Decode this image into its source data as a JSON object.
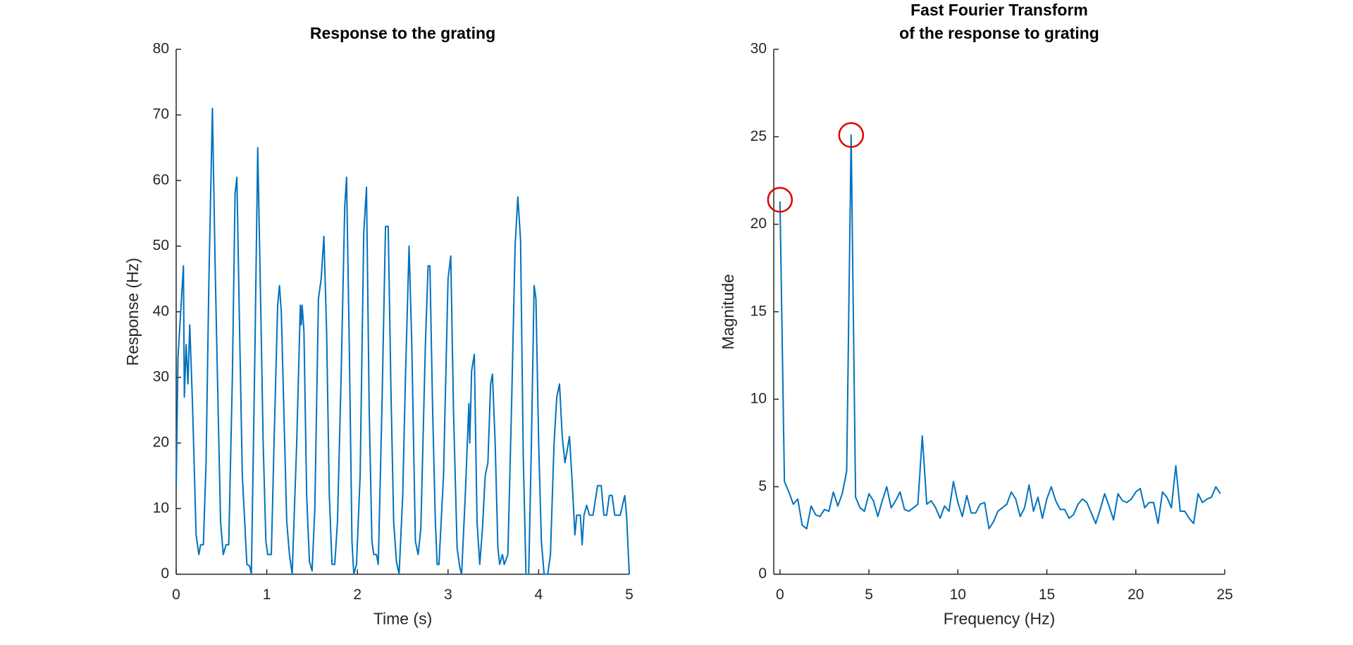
{
  "chart_data": [
    {
      "type": "line",
      "title": [
        "Response to the grating"
      ],
      "xlabel": "Time (s)",
      "ylabel": "Response (Hz)",
      "x": [
        0,
        0.02,
        0.05,
        0.08,
        0.09,
        0.11,
        0.13,
        0.15,
        0.18,
        0.22,
        0.25,
        0.27,
        0.3,
        0.33,
        0.36,
        0.4,
        0.43,
        0.46,
        0.49,
        0.52,
        0.55,
        0.58,
        0.62,
        0.65,
        0.67,
        0.7,
        0.73,
        0.76,
        0.78,
        0.81,
        0.83,
        0.87,
        0.9,
        0.93,
        0.96,
        0.99,
        1.01,
        1.05,
        1.08,
        1.12,
        1.14,
        1.16,
        1.19,
        1.22,
        1.25,
        1.28,
        1.33,
        1.37,
        1.38,
        1.39,
        1.41,
        1.44,
        1.47,
        1.5,
        1.53,
        1.57,
        1.6,
        1.63,
        1.66,
        1.69,
        1.72,
        1.75,
        1.78,
        1.82,
        1.86,
        1.88,
        1.91,
        1.94,
        1.96,
        1.99,
        2.03,
        2.07,
        2.1,
        2.13,
        2.16,
        2.18,
        2.21,
        2.23,
        2.27,
        2.31,
        2.34,
        2.37,
        2.4,
        2.43,
        2.46,
        2.5,
        2.53,
        2.57,
        2.6,
        2.64,
        2.67,
        2.7,
        2.75,
        2.78,
        2.8,
        2.83,
        2.86,
        2.88,
        2.9,
        2.95,
        3.0,
        3.03,
        3.06,
        3.1,
        3.13,
        3.15,
        3.19,
        3.23,
        3.24,
        3.26,
        3.29,
        3.32,
        3.35,
        3.38,
        3.41,
        3.44,
        3.47,
        3.49,
        3.52,
        3.55,
        3.57,
        3.6,
        3.62,
        3.66,
        3.7,
        3.74,
        3.77,
        3.8,
        3.83,
        3.86,
        3.89,
        3.92,
        3.95,
        3.97,
        4.0,
        4.03,
        4.06,
        4.1,
        4.13,
        4.17,
        4.2,
        4.23,
        4.26,
        4.29,
        4.31,
        4.34,
        4.37,
        4.4,
        4.42,
        4.46,
        4.48,
        4.5,
        4.53,
        4.56,
        4.6,
        4.65,
        4.69,
        4.72,
        4.75,
        4.78,
        4.81,
        4.84,
        4.87,
        4.9,
        4.95,
        4.97,
        5.0
      ],
      "series": [
        {
          "color": "#0072bd",
          "values": [
            13.5,
            33,
            40,
            47,
            27,
            35,
            29,
            38,
            26,
            6,
            3,
            4.5,
            4.5,
            17,
            44,
            71,
            47,
            27,
            8,
            3,
            4.5,
            4.5,
            30,
            58,
            60.5,
            37,
            15,
            7,
            1.5,
            1.3,
            0,
            35,
            65,
            43,
            20,
            5,
            3,
            3,
            20,
            41,
            44,
            40,
            24,
            8,
            3,
            0,
            20,
            41,
            38,
            41,
            37,
            12,
            2,
            0.5,
            10,
            42,
            45,
            51.5,
            37,
            12,
            1.5,
            1.5,
            8,
            30,
            56,
            60.5,
            35,
            5,
            0,
            1.5,
            15,
            52,
            59,
            25,
            5,
            3,
            3,
            1.5,
            25,
            53,
            53,
            28,
            8,
            2,
            0,
            12,
            30,
            50,
            35,
            5,
            3,
            7,
            35,
            47,
            47,
            25,
            8,
            1.5,
            1.5,
            15,
            45,
            48.5,
            25,
            4,
            1,
            0,
            12,
            26,
            20,
            31,
            33.5,
            8,
            1.5,
            7,
            15,
            17,
            29,
            30.5,
            20,
            4,
            1.5,
            3,
            1.5,
            3,
            25,
            50,
            57.5,
            51,
            18,
            0,
            0,
            20,
            44,
            42,
            20,
            5,
            0,
            0,
            3,
            20,
            27,
            29,
            21,
            17,
            18.5,
            21,
            14,
            6,
            9,
            9,
            4.5,
            9,
            10.5,
            9,
            9,
            13.5,
            13.5,
            9,
            9,
            12,
            12,
            9,
            9,
            9,
            12,
            9,
            0
          ]
        }
      ],
      "xlim": [
        0,
        5
      ],
      "ylim": [
        0,
        80
      ],
      "xticks": [
        0,
        1,
        2,
        3,
        4,
        5
      ],
      "yticks": [
        0,
        10,
        20,
        30,
        40,
        50,
        60,
        70,
        80
      ]
    },
    {
      "type": "line",
      "title": [
        "Fast Fourier Transform",
        "of the response to grating"
      ],
      "xlabel": "Frequency (Hz)",
      "ylabel": "Magnitude",
      "x": [
        0,
        0.25,
        0.5,
        0.75,
        1,
        1.25,
        1.5,
        1.75,
        2,
        2.25,
        2.5,
        2.75,
        3,
        3.25,
        3.5,
        3.75,
        4,
        4.25,
        4.5,
        4.75,
        5,
        5.25,
        5.5,
        5.75,
        6,
        6.25,
        6.5,
        6.75,
        7,
        7.25,
        7.5,
        7.75,
        8,
        8.25,
        8.5,
        8.75,
        9,
        9.25,
        9.5,
        9.75,
        10,
        10.25,
        10.5,
        10.75,
        11,
        11.25,
        11.5,
        11.75,
        12,
        12.25,
        12.5,
        12.75,
        13,
        13.25,
        13.5,
        13.75,
        14,
        14.25,
        14.5,
        14.75,
        15,
        15.25,
        15.5,
        15.75,
        16,
        16.25,
        16.5,
        16.75,
        17,
        17.25,
        17.5,
        17.75,
        18,
        18.25,
        18.5,
        18.75,
        19,
        19.25,
        19.5,
        19.75,
        20,
        20.25,
        20.5,
        20.75,
        21,
        21.25,
        21.5,
        21.75,
        22,
        22.25,
        22.5,
        22.75,
        23,
        23.25,
        23.5,
        23.75,
        24,
        24.25,
        24.5,
        24.75
      ],
      "series": [
        {
          "color": "#0072bd",
          "values": [
            21.3,
            5.3,
            4.7,
            4.0,
            4.3,
            2.8,
            2.6,
            3.9,
            3.4,
            3.3,
            3.7,
            3.6,
            4.7,
            3.9,
            4.6,
            5.9,
            25.1,
            4.4,
            3.8,
            3.6,
            4.6,
            4.2,
            3.3,
            4.2,
            5.0,
            3.8,
            4.2,
            4.7,
            3.7,
            3.6,
            3.8,
            4.0,
            7.9,
            4.0,
            4.2,
            3.8,
            3.2,
            3.9,
            3.6,
            5.3,
            4.1,
            3.3,
            4.5,
            3.5,
            3.5,
            4.0,
            4.1,
            2.6,
            3.0,
            3.6,
            3.8,
            4.0,
            4.7,
            4.3,
            3.3,
            3.8,
            5.1,
            3.6,
            4.4,
            3.2,
            4.3,
            5.0,
            4.2,
            3.7,
            3.7,
            3.2,
            3.4,
            4.0,
            4.3,
            4.1,
            3.5,
            2.9,
            3.7,
            4.6,
            3.9,
            3.1,
            4.6,
            4.2,
            4.1,
            4.3,
            4.7,
            4.9,
            3.8,
            4.1,
            4.1,
            2.9,
            4.7,
            4.4,
            3.8,
            6.2,
            3.6,
            3.6,
            3.2,
            2.9,
            4.6,
            4.1,
            4.3,
            4.4,
            5.0,
            4.6
          ]
        }
      ],
      "highlight": {
        "color": "#e00000",
        "x": [
          0,
          4
        ],
        "y": [
          21.4,
          25.1
        ]
      },
      "xlim": [
        -0.35,
        25
      ],
      "ylim": [
        0,
        30
      ],
      "xticks": [
        0,
        5,
        10,
        15,
        20,
        25
      ],
      "yticks": [
        0,
        5,
        10,
        15,
        20,
        25,
        30
      ]
    }
  ]
}
